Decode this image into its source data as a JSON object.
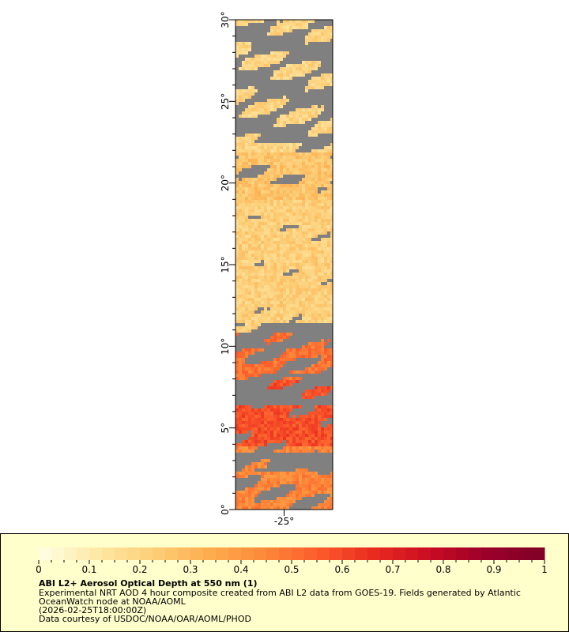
{
  "chart_data": {
    "type": "heatmap",
    "variable": "ABI L2+ Aerosol Optical Depth at 550 nm (1)",
    "lat_range": [
      0,
      30
    ],
    "lon_center": -25,
    "y_ticks": [
      "0°",
      "5°",
      "10°",
      "15°",
      "20°",
      "25°",
      "30°"
    ],
    "x_ticks": [
      "-25°"
    ],
    "no_data_color": "#808080",
    "colorbar": {
      "range": [
        0,
        1
      ],
      "steps": 40,
      "tick_labels": [
        "0",
        "0.1",
        "0.2",
        "0.3",
        "0.4",
        "0.5",
        "0.6",
        "0.7",
        "0.8",
        "0.9",
        "1"
      ],
      "colors": [
        "#ffffe5",
        "#fee9a8",
        "#fdd07a",
        "#fdae4f",
        "#fc8a3a",
        "#fb5a2b",
        "#e8291f",
        "#c70b24",
        "#99002a",
        "#800026"
      ]
    }
  },
  "legend": {
    "title": "ABI L2+ Aerosol Optical Depth at 550 nm (1)",
    "line1": "Experimental NRT AOD 4 hour composite created from ABI L2 data from GOES-19. Fields generated by Atlantic",
    "line2": "OceanWatch node at NOAA/AOML",
    "line3": "(2026-02-25T18:00:00Z)",
    "line4": "Data courtesy of USDOC/NOAA/OAR/AOML/PHOD"
  }
}
